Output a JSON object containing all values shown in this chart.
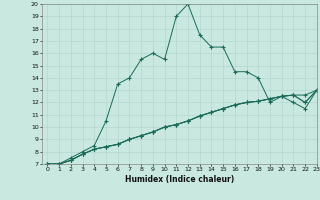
{
  "title": "",
  "xlabel": "Humidex (Indice chaleur)",
  "bg_color": "#c8e8e0",
  "line_color": "#1a6b5a",
  "grid_color": "#b0d4cc",
  "xlim": [
    -0.5,
    23
  ],
  "ylim": [
    7,
    20
  ],
  "xticks": [
    0,
    1,
    2,
    3,
    4,
    5,
    6,
    7,
    8,
    9,
    10,
    11,
    12,
    13,
    14,
    15,
    16,
    17,
    18,
    19,
    20,
    21,
    22,
    23
  ],
  "yticks": [
    7,
    8,
    9,
    10,
    11,
    12,
    13,
    14,
    15,
    16,
    17,
    18,
    19,
    20
  ],
  "series": [
    {
      "x": [
        0,
        1,
        2,
        3,
        4,
        5,
        6,
        7,
        8,
        9,
        10,
        11,
        12,
        13,
        14,
        15,
        16,
        17,
        18,
        19,
        20,
        21,
        22,
        23
      ],
      "y": [
        7,
        7,
        7.5,
        8,
        8.5,
        10.5,
        13.5,
        14,
        15.5,
        16,
        15.5,
        19,
        20,
        17.5,
        16.5,
        16.5,
        14.5,
        14.5,
        14,
        12,
        12.5,
        12,
        11.5,
        13
      ]
    },
    {
      "x": [
        0,
        1,
        2,
        3,
        4,
        5,
        6,
        7,
        8,
        9,
        10,
        11,
        12,
        13,
        14,
        15,
        16,
        17,
        18,
        19,
        20,
        21,
        22,
        23
      ],
      "y": [
        7,
        7,
        7.3,
        7.8,
        8.2,
        8.4,
        8.6,
        9.0,
        9.3,
        9.6,
        10.0,
        10.2,
        10.5,
        10.9,
        11.2,
        11.5,
        11.8,
        12.0,
        12.1,
        12.3,
        12.5,
        12.6,
        12.6,
        13.0
      ]
    },
    {
      "x": [
        0,
        1,
        2,
        3,
        4,
        5,
        6,
        7,
        8,
        9,
        10,
        11,
        12,
        13,
        14,
        15,
        16,
        17,
        18,
        19,
        20,
        21,
        22,
        23
      ],
      "y": [
        7,
        7,
        7.3,
        7.8,
        8.2,
        8.4,
        8.6,
        9.0,
        9.3,
        9.6,
        10.0,
        10.2,
        10.5,
        10.9,
        11.2,
        11.5,
        11.8,
        12.0,
        12.1,
        12.3,
        12.5,
        12.6,
        12.0,
        13.0
      ]
    },
    {
      "x": [
        0,
        1,
        2,
        3,
        4,
        5,
        6,
        7,
        8,
        9,
        10,
        11,
        12,
        13,
        14,
        15,
        16,
        17,
        18,
        19,
        20,
        21,
        22,
        23
      ],
      "y": [
        7,
        7,
        7.3,
        7.8,
        8.2,
        8.4,
        8.6,
        9.0,
        9.3,
        9.6,
        10.0,
        10.2,
        10.5,
        10.9,
        11.2,
        11.5,
        11.8,
        12.0,
        12.1,
        12.3,
        12.5,
        12.6,
        12.0,
        13.0
      ]
    }
  ]
}
